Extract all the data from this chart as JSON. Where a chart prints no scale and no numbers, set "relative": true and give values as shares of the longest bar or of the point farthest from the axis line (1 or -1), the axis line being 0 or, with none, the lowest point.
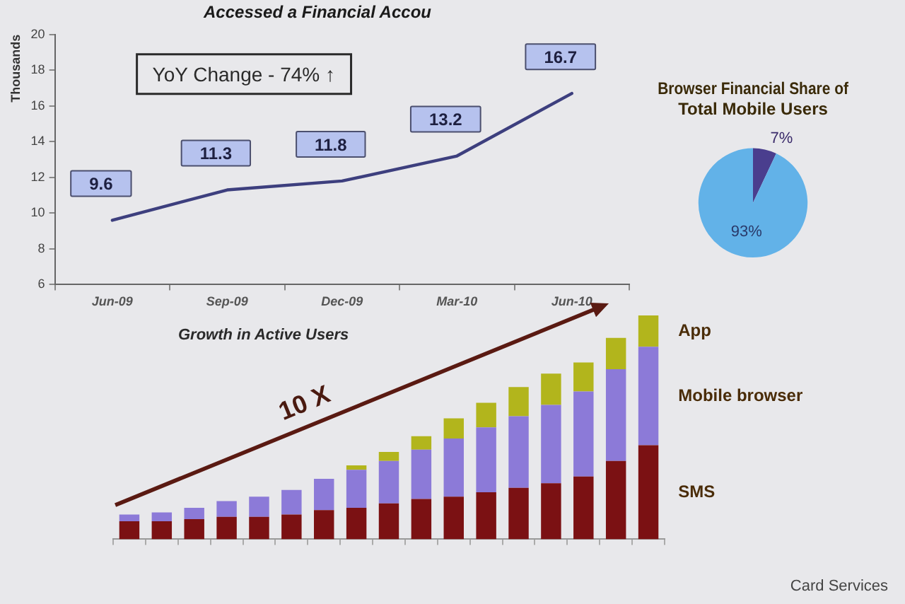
{
  "chart_data": [
    {
      "type": "line",
      "title": "Accessed a Financial Accou",
      "ylabel": "Thousands",
      "categories": [
        "Jun-09",
        "Sep-09",
        "Dec-09",
        "Mar-10",
        "Jun-10"
      ],
      "series": [
        {
          "color": "#3d3f7e",
          "values": [
            9.6,
            11.3,
            11.8,
            13.2,
            16.7
          ]
        }
      ],
      "ylim": [
        6,
        20
      ],
      "yticks": [
        6,
        8,
        10,
        12,
        14,
        16,
        18,
        20
      ],
      "grid": false,
      "data_labels": true,
      "annotations": [
        "YoY Change - 74% ↑"
      ]
    },
    {
      "type": "pie",
      "title": "Browser Financial Share of Total Mobile Users",
      "categories": [
        null,
        null
      ],
      "values": [
        7,
        93
      ],
      "colors": [
        "#4a3e8e",
        "#62b2e8"
      ],
      "value_labels": [
        "7%",
        "93%"
      ]
    },
    {
      "type": "bar",
      "stacked": true,
      "relative": true,
      "title": "Growth in Active Users",
      "categories": [
        null,
        null,
        null,
        null,
        null,
        null,
        null,
        null,
        null,
        null,
        null,
        null,
        null,
        null,
        null,
        null,
        null
      ],
      "series": [
        {
          "name": "SMS",
          "color": "#7b1113",
          "values": [
            0.08,
            0.08,
            0.09,
            0.1,
            0.1,
            0.11,
            0.13,
            0.14,
            0.16,
            0.18,
            0.19,
            0.21,
            0.23,
            0.25,
            0.28,
            0.35,
            0.42
          ]
        },
        {
          "name": "Mobile browser",
          "color": "#8c7ad8",
          "values": [
            0.03,
            0.04,
            0.05,
            0.07,
            0.09,
            0.11,
            0.14,
            0.17,
            0.19,
            0.22,
            0.26,
            0.29,
            0.32,
            0.35,
            0.38,
            0.41,
            0.44
          ]
        },
        {
          "name": "App",
          "color": "#b2b51c",
          "values": [
            null,
            null,
            null,
            null,
            null,
            null,
            null,
            0.02,
            0.04,
            0.06,
            0.09,
            0.11,
            0.13,
            0.14,
            0.13,
            0.14,
            0.14
          ]
        }
      ],
      "grid": false,
      "annotations": [
        "10 X",
        "Card Services"
      ]
    }
  ]
}
